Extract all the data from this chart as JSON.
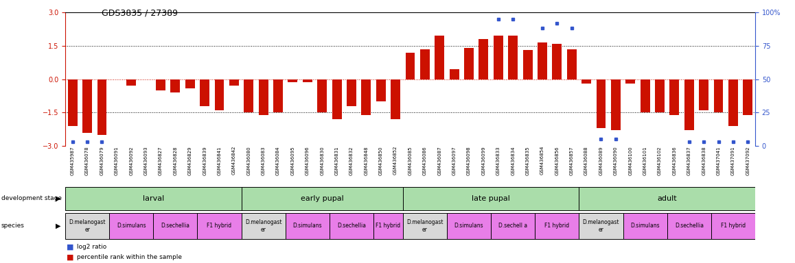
{
  "title": "GDS3835 / 27389",
  "samples": [
    "GSM435987",
    "GSM436078",
    "GSM436079",
    "GSM436091",
    "GSM436092",
    "GSM436093",
    "GSM436827",
    "GSM436828",
    "GSM436829",
    "GSM436839",
    "GSM436841",
    "GSM436842",
    "GSM436080",
    "GSM436083",
    "GSM436084",
    "GSM436095",
    "GSM436096",
    "GSM436830",
    "GSM436831",
    "GSM436832",
    "GSM436848",
    "GSM436850",
    "GSM436852",
    "GSM436085",
    "GSM436086",
    "GSM436087",
    "GSM436097",
    "GSM436098",
    "GSM436099",
    "GSM436833",
    "GSM436834",
    "GSM436835",
    "GSM436854",
    "GSM436856",
    "GSM436857",
    "GSM436088",
    "GSM436089",
    "GSM436090",
    "GSM436100",
    "GSM436101",
    "GSM436102",
    "GSM436836",
    "GSM436837",
    "GSM436838",
    "GSM437041",
    "GSM437091",
    "GSM437092"
  ],
  "log2_ratio": [
    -2.1,
    -2.4,
    -2.5,
    0.0,
    -0.3,
    0.0,
    -0.5,
    -0.6,
    -0.4,
    -1.2,
    -1.4,
    -0.3,
    -1.5,
    -1.6,
    -1.5,
    -0.15,
    -0.15,
    -1.5,
    -1.8,
    -1.2,
    -1.6,
    -1.0,
    -1.8,
    1.2,
    1.35,
    1.95,
    0.45,
    1.4,
    1.8,
    1.95,
    1.95,
    1.3,
    1.65,
    1.6,
    1.35,
    -0.2,
    -2.2,
    -2.3,
    -0.2,
    -1.5,
    -1.5,
    -1.6,
    -2.3,
    -1.4,
    -1.5,
    -2.1,
    -1.6
  ],
  "percentile": [
    3,
    3,
    3,
    null,
    null,
    null,
    null,
    null,
    null,
    null,
    null,
    null,
    null,
    null,
    null,
    null,
    null,
    null,
    null,
    null,
    null,
    null,
    null,
    null,
    null,
    null,
    null,
    null,
    null,
    95,
    95,
    null,
    88,
    92,
    88,
    null,
    5,
    5,
    null,
    null,
    null,
    null,
    3,
    3,
    3,
    3,
    3
  ],
  "dev_stage_groups": [
    {
      "label": "larval",
      "start": 0,
      "end": 11
    },
    {
      "label": "early pupal",
      "start": 12,
      "end": 22
    },
    {
      "label": "late pupal",
      "start": 23,
      "end": 34
    },
    {
      "label": "adult",
      "start": 35,
      "end": 46
    }
  ],
  "species_defs": [
    {
      "start": 0,
      "end": 2,
      "label": "D.melanogast\ner",
      "color": "#d8d8d8"
    },
    {
      "start": 3,
      "end": 5,
      "label": "D.simulans",
      "color": "#e87ee8"
    },
    {
      "start": 6,
      "end": 8,
      "label": "D.sechellia",
      "color": "#e87ee8"
    },
    {
      "start": 9,
      "end": 11,
      "label": "F1 hybrid",
      "color": "#e87ee8"
    },
    {
      "start": 12,
      "end": 14,
      "label": "D.melanogast\ner",
      "color": "#d8d8d8"
    },
    {
      "start": 15,
      "end": 17,
      "label": "D.simulans",
      "color": "#e87ee8"
    },
    {
      "start": 18,
      "end": 20,
      "label": "D.sechellia",
      "color": "#e87ee8"
    },
    {
      "start": 21,
      "end": 22,
      "label": "F1 hybrid",
      "color": "#e87ee8"
    },
    {
      "start": 23,
      "end": 25,
      "label": "D.melanogast\ner",
      "color": "#d8d8d8"
    },
    {
      "start": 26,
      "end": 28,
      "label": "D.simulans",
      "color": "#e87ee8"
    },
    {
      "start": 29,
      "end": 31,
      "label": "D.sechell a",
      "color": "#e87ee8"
    },
    {
      "start": 32,
      "end": 34,
      "label": "F1 hybrid",
      "color": "#e87ee8"
    },
    {
      "start": 35,
      "end": 37,
      "label": "D.melanogast\ner",
      "color": "#d8d8d8"
    },
    {
      "start": 38,
      "end": 40,
      "label": "D.simulans",
      "color": "#e87ee8"
    },
    {
      "start": 41,
      "end": 43,
      "label": "D.sechellia",
      "color": "#e87ee8"
    },
    {
      "start": 44,
      "end": 46,
      "label": "F1 hybrid",
      "color": "#e87ee8"
    }
  ],
  "ylim_left": [
    -3,
    3
  ],
  "ylim_right": [
    0,
    100
  ],
  "bar_color": "#cc1100",
  "dot_color": "#3355cc",
  "stage_color": "#aaddaa",
  "background": "#ffffff"
}
